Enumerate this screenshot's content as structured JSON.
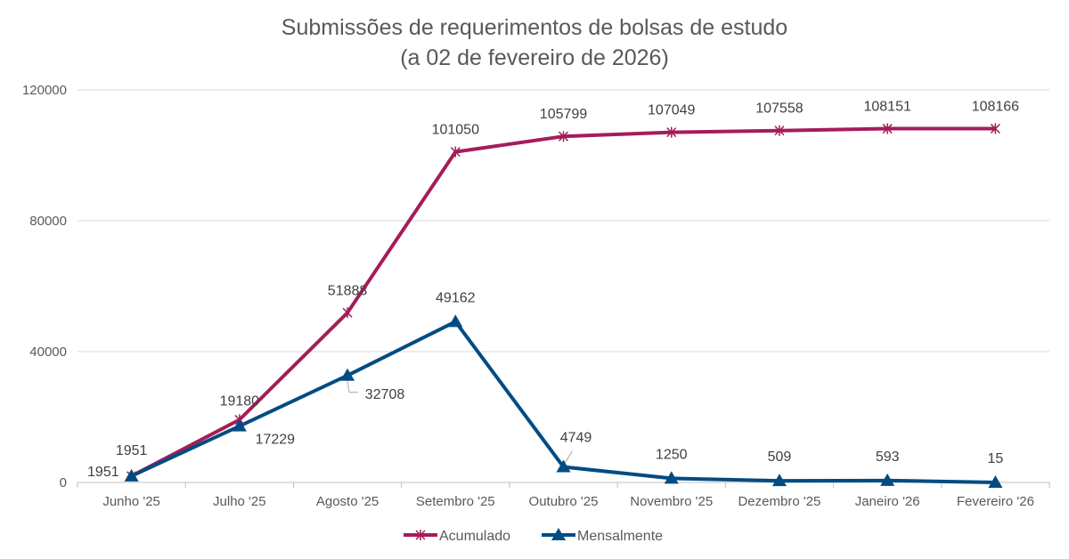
{
  "chart_data": {
    "type": "line",
    "title": "Submissões de requerimentos de bolsas de estudo",
    "subtitle": "(a 02 de fevereiro de 2026)",
    "categories": [
      "Junho '25",
      "Julho '25",
      "Agosto '25",
      "Setembro '25",
      "Outubro '25",
      "Novembro '25",
      "Dezembro '25",
      "Janeiro '26",
      "Fevereiro '26"
    ],
    "series": [
      {
        "name": "Acumulado",
        "color": "#A51C5A",
        "marker": "asterisk",
        "values": [
          1951,
          19180,
          51888,
          101050,
          105799,
          107049,
          107558,
          108151,
          108166
        ]
      },
      {
        "name": "Mensalmente",
        "color": "#004C82",
        "marker": "triangle",
        "values": [
          1951,
          17229,
          32708,
          49162,
          4749,
          1250,
          509,
          593,
          15
        ]
      }
    ],
    "yticks": [
      0,
      40000,
      80000,
      120000
    ],
    "ylim": [
      0,
      120000
    ],
    "grid": true,
    "legend_position": "bottom",
    "data_labels": true
  }
}
